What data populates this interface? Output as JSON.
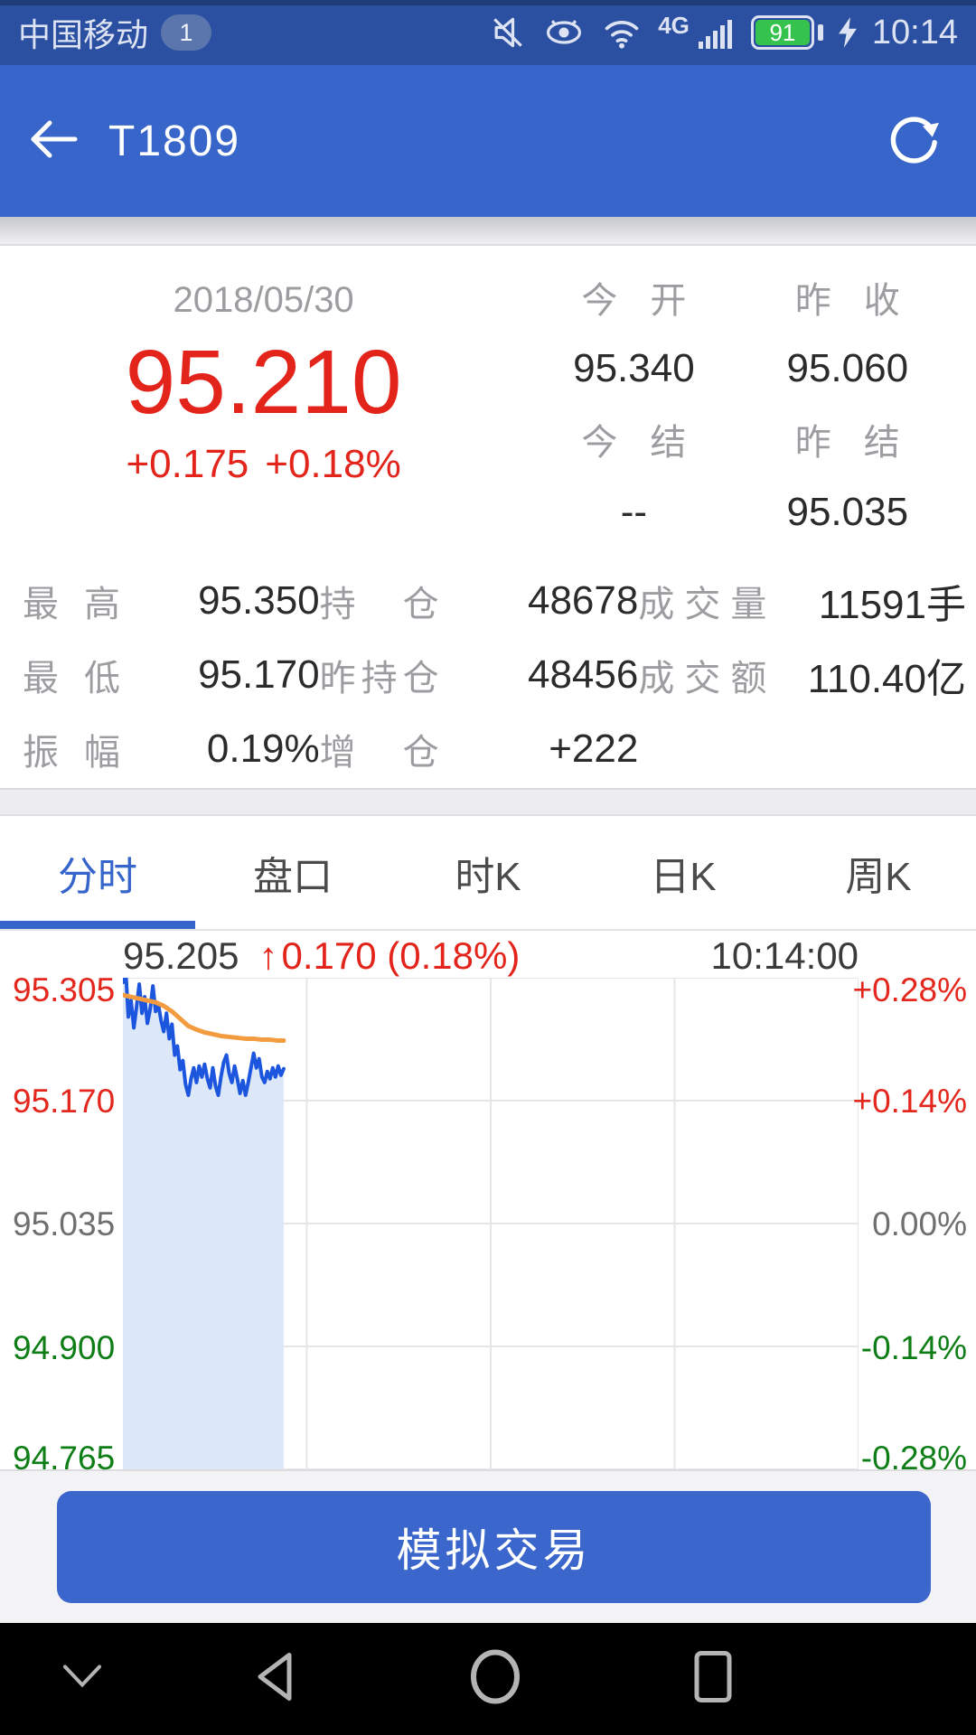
{
  "status_bar": {
    "carrier": "中国移动",
    "badge": "1",
    "network": "4G",
    "battery_percent": "91",
    "time": "10:14",
    "icons": [
      "mute-icon",
      "eye-protection-icon",
      "wifi-icon",
      "signal-strength-icon",
      "battery-icon",
      "charging-icon"
    ]
  },
  "header": {
    "title": "T1809",
    "icons": [
      "back-arrow-icon",
      "refresh-icon"
    ]
  },
  "quote": {
    "date": "2018/05/30",
    "last_price": "95.210",
    "change": "+0.175",
    "change_pct": "+0.18%",
    "up_color": "#e3241b",
    "fields": [
      {
        "label": "今开",
        "value": "95.340"
      },
      {
        "label": "昨收",
        "value": "95.060"
      },
      {
        "label": "今结",
        "value": "--"
      },
      {
        "label": "昨结",
        "value": "95.035"
      }
    ],
    "stats": [
      {
        "label": "最高",
        "value": "95.350"
      },
      {
        "label": "持仓",
        "value": "48678"
      },
      {
        "label": "成交量",
        "value": "11591手"
      },
      {
        "label": "最低",
        "value": "95.170"
      },
      {
        "label": "昨持仓",
        "value": "48456"
      },
      {
        "label": "成交额",
        "value": "110.40亿"
      },
      {
        "label": "振幅",
        "value": "0.19%"
      },
      {
        "label": "增仓",
        "value": "+222"
      },
      {
        "label": "",
        "value": ""
      }
    ]
  },
  "tabs": {
    "items": [
      "分时",
      "盘口",
      "时K",
      "日K",
      "周K"
    ],
    "active_index": 0
  },
  "chart_data": {
    "type": "line",
    "header": {
      "price": "95.205",
      "change_arrow": "↑",
      "change_text": "0.170 (0.18%)",
      "time": "10:14:00"
    },
    "ylim": [
      94.765,
      95.305
    ],
    "y_axis_left": [
      {
        "label": "95.305",
        "color": "#e3271d"
      },
      {
        "label": "95.170",
        "color": "#e3271d"
      },
      {
        "label": "95.035",
        "color": "#6f6f6f"
      },
      {
        "label": "94.900",
        "color": "#0d7e15"
      },
      {
        "label": "94.765",
        "color": "#0d7e15"
      }
    ],
    "y_axis_right": [
      {
        "label": "+0.28%",
        "color": "#e3271d"
      },
      {
        "label": "+0.14%",
        "color": "#e3271d"
      },
      {
        "label": "0.00%",
        "color": "#6f6f6f"
      },
      {
        "label": "-0.14%",
        "color": "#0d7e15"
      },
      {
        "label": "-0.28%",
        "color": "#0d7e15"
      }
    ],
    "grid": {
      "v_divisions": 4,
      "h_divisions": 4,
      "color": "#e6e6e9"
    },
    "x_axis": {
      "session_minutes": 270,
      "elapsed_minutes": 59
    },
    "series": [
      {
        "name": "price",
        "color": "#1c55de",
        "fill": "#dce7f8",
        "points": [
          [
            0,
            95.3
          ],
          [
            1,
            95.315
          ],
          [
            2,
            95.262
          ],
          [
            3,
            95.28
          ],
          [
            4,
            95.25
          ],
          [
            5,
            95.273
          ],
          [
            6,
            95.298
          ],
          [
            7,
            95.266
          ],
          [
            8,
            95.284
          ],
          [
            9,
            95.255
          ],
          [
            10,
            95.27
          ],
          [
            11,
            95.296
          ],
          [
            12,
            95.268
          ],
          [
            13,
            95.276
          ],
          [
            14,
            95.258
          ],
          [
            15,
            95.246
          ],
          [
            16,
            95.266
          ],
          [
            17,
            95.238
          ],
          [
            18,
            95.254
          ],
          [
            19,
            95.22
          ],
          [
            20,
            95.23
          ],
          [
            21,
            95.204
          ],
          [
            22,
            95.214
          ],
          [
            23,
            95.188
          ],
          [
            24,
            95.176
          ],
          [
            25,
            95.194
          ],
          [
            26,
            95.206
          ],
          [
            27,
            95.19
          ],
          [
            28,
            95.208
          ],
          [
            29,
            95.196
          ],
          [
            30,
            95.21
          ],
          [
            31,
            95.194
          ],
          [
            32,
            95.184
          ],
          [
            33,
            95.206
          ],
          [
            34,
            95.186
          ],
          [
            35,
            95.176
          ],
          [
            36,
            95.196
          ],
          [
            37,
            95.212
          ],
          [
            38,
            95.22
          ],
          [
            39,
            95.2
          ],
          [
            40,
            95.19
          ],
          [
            41,
            95.208
          ],
          [
            42,
            95.194
          ],
          [
            43,
            95.178
          ],
          [
            44,
            95.192
          ],
          [
            45,
            95.176
          ],
          [
            46,
            95.19
          ],
          [
            47,
            95.206
          ],
          [
            48,
            95.222
          ],
          [
            49,
            95.206
          ],
          [
            50,
            95.216
          ],
          [
            51,
            95.196
          ],
          [
            52,
            95.19
          ],
          [
            53,
            95.202
          ],
          [
            54,
            95.194
          ],
          [
            55,
            95.206
          ],
          [
            56,
            95.196
          ],
          [
            57,
            95.208
          ],
          [
            58,
            95.198
          ],
          [
            59,
            95.205
          ]
        ]
      },
      {
        "name": "average",
        "color": "#f29b3f",
        "points": [
          [
            0,
            95.286
          ],
          [
            3,
            95.284
          ],
          [
            6,
            95.282
          ],
          [
            9,
            95.28
          ],
          [
            12,
            95.278
          ],
          [
            15,
            95.274
          ],
          [
            18,
            95.268
          ],
          [
            21,
            95.26
          ],
          [
            24,
            95.252
          ],
          [
            27,
            95.248
          ],
          [
            30,
            95.245
          ],
          [
            33,
            95.243
          ],
          [
            36,
            95.241
          ],
          [
            39,
            95.24
          ],
          [
            42,
            95.239
          ],
          [
            45,
            95.238
          ],
          [
            48,
            95.238
          ],
          [
            51,
            95.237
          ],
          [
            54,
            95.237
          ],
          [
            57,
            95.236
          ],
          [
            59,
            95.236
          ]
        ]
      }
    ]
  },
  "trade_button_label": "模拟交易",
  "nav_bar": {
    "icons": [
      "hide-nav-chevron-icon",
      "back-triangle-icon",
      "home-circle-icon",
      "recents-square-icon"
    ]
  }
}
